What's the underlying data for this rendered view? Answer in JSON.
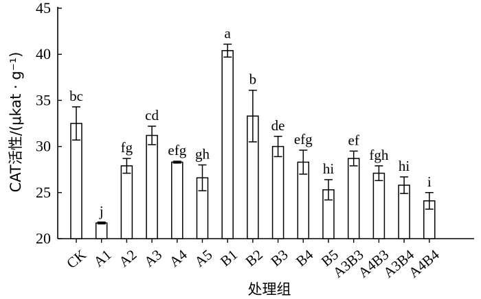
{
  "chart_data": {
    "type": "bar",
    "xlabel": "处理组",
    "ylabel": "CAT活性/(μkat · g⁻¹)",
    "ylim": [
      20,
      45
    ],
    "yticks": [
      20,
      25,
      30,
      35,
      40,
      45
    ],
    "grid": false,
    "categories": [
      "CK",
      "A1",
      "A2",
      "A3",
      "A4",
      "A5",
      "B1",
      "B2",
      "B3",
      "B4",
      "B5",
      "A3B3",
      "A4B3",
      "A3B4",
      "A4B4"
    ],
    "values": [
      32.5,
      21.7,
      27.9,
      31.2,
      28.3,
      26.6,
      40.4,
      33.3,
      30.0,
      28.3,
      25.3,
      28.7,
      27.1,
      25.8,
      24.1
    ],
    "errors": [
      1.8,
      0.1,
      0.8,
      1.0,
      0.1,
      1.4,
      0.7,
      2.8,
      1.1,
      1.3,
      1.1,
      0.8,
      0.8,
      0.9,
      0.9
    ],
    "significance": [
      "bc",
      "j",
      "fg",
      "cd",
      "efg",
      "gh",
      "a",
      "b",
      "de",
      "efg",
      "hi",
      "ef",
      "fgh",
      "hi",
      "i"
    ]
  }
}
